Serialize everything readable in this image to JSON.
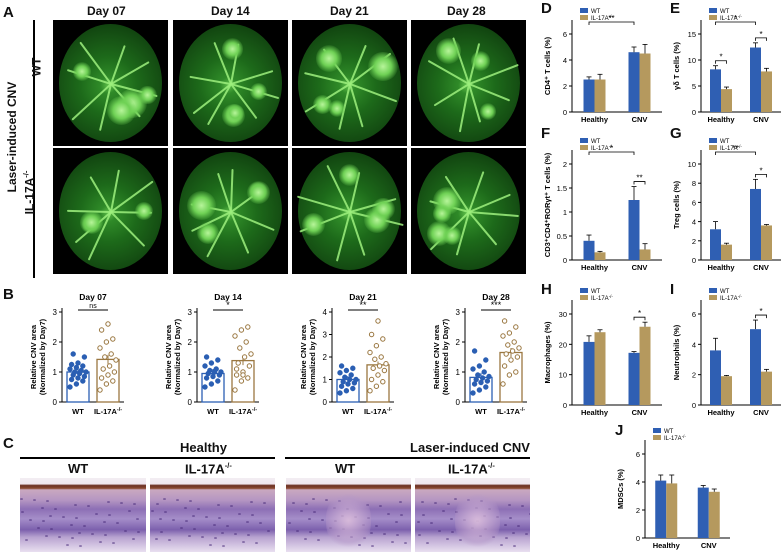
{
  "panels": {
    "A": "A",
    "B": "B",
    "C": "C",
    "D": "D",
    "E": "E",
    "F": "F",
    "G": "G",
    "H": "H",
    "I": "I",
    "J": "J"
  },
  "panel_a": {
    "days": [
      "Day 07",
      "Day 14",
      "Day 21",
      "Day 28"
    ],
    "row_title": "Laser-induced CNV",
    "rows": [
      "WT",
      "IL-17A"
    ],
    "row_sup": "-/-"
  },
  "panel_b": {
    "ylabel_1": "Relative CNV area",
    "ylabel_2": "(Normalized by Day7)",
    "groups": [
      "WT",
      "IL-17A"
    ],
    "group_sup": "-/-",
    "colors": {
      "wt": "#2b5fb3",
      "ko": "#9a7740"
    }
  },
  "panel_c": {
    "headers": [
      "Healthy",
      "Laser-induced CNV"
    ],
    "sub": [
      "WT",
      "IL-17A",
      "WT",
      "IL-17A"
    ],
    "sub_sup": "-/-"
  },
  "legend": {
    "wt": "WT",
    "ko": "IL-17A",
    "ko_sup": "-/-"
  },
  "bar_colors": {
    "wt": "#2f5fb3",
    "ko": "#b5995e"
  },
  "chart_data": [
    {
      "panel": "B",
      "type": "scatter",
      "title": "Day 07",
      "ylim": [
        0,
        3
      ],
      "yticks": [
        0,
        1,
        2,
        3
      ],
      "categories": [
        "WT",
        "IL-17A"
      ],
      "means": [
        1.0,
        1.42
      ],
      "sig": "ns",
      "series": [
        {
          "name": "WT",
          "values": [
            0.5,
            0.6,
            0.7,
            0.75,
            0.8,
            0.85,
            0.9,
            0.95,
            1.0,
            1.0,
            1.05,
            1.1,
            1.15,
            1.2,
            1.25,
            1.3,
            1.5,
            1.6
          ]
        },
        {
          "name": "IL-17A",
          "values": [
            0.4,
            0.6,
            0.7,
            0.8,
            0.9,
            1.0,
            1.1,
            1.2,
            1.4,
            1.5,
            1.6,
            1.8,
            2.0,
            2.1,
            2.4,
            2.6
          ]
        }
      ]
    },
    {
      "panel": "B",
      "type": "scatter",
      "title": "Day 14",
      "ylim": [
        0,
        3
      ],
      "yticks": [
        0,
        1,
        2,
        3
      ],
      "categories": [
        "WT",
        "IL-17A"
      ],
      "means": [
        0.95,
        1.38
      ],
      "sig": "*",
      "series": [
        {
          "name": "WT",
          "values": [
            0.5,
            0.6,
            0.7,
            0.8,
            0.85,
            0.9,
            0.95,
            1.0,
            1.0,
            1.05,
            1.1,
            1.2,
            1.3,
            1.4,
            1.5
          ]
        },
        {
          "name": "IL-17A",
          "values": [
            0.4,
            0.7,
            0.8,
            0.9,
            1.0,
            1.2,
            1.3,
            1.5,
            1.6,
            1.8,
            2.0,
            2.2,
            2.4,
            2.5,
            1.1,
            0.9
          ]
        }
      ]
    },
    {
      "panel": "B",
      "type": "scatter",
      "title": "Day 21",
      "ylim": [
        0,
        4
      ],
      "yticks": [
        0,
        1,
        2,
        3,
        4
      ],
      "categories": [
        "WT",
        "IL-17A"
      ],
      "means": [
        1.0,
        1.65
      ],
      "sig": "**",
      "series": [
        {
          "name": "WT",
          "values": [
            0.4,
            0.5,
            0.6,
            0.7,
            0.8,
            0.85,
            0.9,
            1.0,
            1.0,
            1.1,
            1.2,
            1.3,
            1.4,
            1.5,
            1.6
          ]
        },
        {
          "name": "IL-17A",
          "values": [
            0.5,
            0.7,
            0.9,
            1.0,
            1.2,
            1.4,
            1.5,
            1.6,
            1.7,
            1.9,
            2.0,
            2.2,
            2.5,
            2.8,
            3.0,
            3.6
          ]
        }
      ]
    },
    {
      "panel": "B",
      "type": "scatter",
      "title": "Day 28",
      "ylim": [
        0,
        3
      ],
      "yticks": [
        0,
        1,
        2,
        3
      ],
      "categories": [
        "WT",
        "IL-17A"
      ],
      "means": [
        0.82,
        1.65
      ],
      "sig": "***",
      "series": [
        {
          "name": "WT",
          "values": [
            0.3,
            0.4,
            0.5,
            0.6,
            0.65,
            0.7,
            0.75,
            0.8,
            0.85,
            0.9,
            1.0,
            1.1,
            1.2,
            1.4,
            1.7
          ]
        },
        {
          "name": "IL-17A",
          "values": [
            0.6,
            0.9,
            1.0,
            1.2,
            1.4,
            1.5,
            1.6,
            1.7,
            1.8,
            1.9,
            2.0,
            2.2,
            2.3,
            2.5,
            2.7
          ]
        }
      ]
    },
    {
      "panel": "D",
      "type": "bar",
      "ylabel": "CD4⁺ T cells (%)",
      "ylim": [
        0,
        6
      ],
      "yticks": [
        0,
        2,
        4,
        6
      ],
      "categories": [
        "Healthy",
        "CNV"
      ],
      "series": [
        {
          "name": "WT",
          "values": [
            2.5,
            4.6
          ],
          "err": [
            0.2,
            0.4
          ]
        },
        {
          "name": "IL-17A",
          "values": [
            2.5,
            4.5
          ],
          "err": [
            0.4,
            0.7
          ]
        }
      ],
      "sig": [
        {
          "label": "**",
          "from": [
            0,
            0
          ],
          "to": [
            1,
            0
          ]
        }
      ]
    },
    {
      "panel": "E",
      "type": "bar",
      "ylabel": "γδ T cells (%)",
      "ylim": [
        0,
        15
      ],
      "yticks": [
        0,
        5,
        10,
        15
      ],
      "categories": [
        "Healthy",
        "CNV"
      ],
      "series": [
        {
          "name": "WT",
          "values": [
            8.2,
            12.4
          ],
          "err": [
            0.7,
            0.9
          ]
        },
        {
          "name": "IL-17A",
          "values": [
            4.4,
            7.8
          ],
          "err": [
            0.4,
            0.6
          ]
        }
      ],
      "sig": [
        {
          "label": "*",
          "from": [
            0,
            0
          ],
          "to": [
            0,
            1
          ]
        },
        {
          "label": "*",
          "from": [
            0,
            0
          ],
          "to": [
            1,
            0
          ]
        },
        {
          "label": "*",
          "from": [
            1,
            0
          ],
          "to": [
            1,
            1
          ]
        }
      ]
    },
    {
      "panel": "F",
      "type": "bar",
      "ylabel": "CD3⁺CD4⁺RORγt⁺ T cells (%)",
      "ylim": [
        0,
        2.0
      ],
      "yticks": [
        0,
        0.5,
        1.0,
        1.5,
        2.0
      ],
      "categories": [
        "Healthy",
        "CNV"
      ],
      "series": [
        {
          "name": "WT",
          "values": [
            0.4,
            1.25
          ],
          "err": [
            0.12,
            0.28
          ]
        },
        {
          "name": "IL-17A",
          "values": [
            0.16,
            0.22
          ],
          "err": [
            0.02,
            0.12
          ]
        }
      ],
      "sig": [
        {
          "label": "*",
          "from": [
            0,
            0
          ],
          "to": [
            1,
            0
          ]
        },
        {
          "label": "**",
          "from": [
            1,
            0
          ],
          "to": [
            1,
            1
          ]
        }
      ]
    },
    {
      "panel": "G",
      "type": "bar",
      "ylabel": "Treg cells (%)",
      "ylim": [
        0,
        10
      ],
      "yticks": [
        0,
        2,
        4,
        6,
        8,
        10
      ],
      "categories": [
        "Healthy",
        "CNV"
      ],
      "series": [
        {
          "name": "WT",
          "values": [
            3.2,
            7.4
          ],
          "err": [
            0.8,
            1.0
          ]
        },
        {
          "name": "IL-17A",
          "values": [
            1.6,
            3.6
          ],
          "err": [
            0.15,
            0.1
          ]
        }
      ],
      "sig": [
        {
          "label": "**",
          "from": [
            0,
            0
          ],
          "to": [
            1,
            0
          ]
        },
        {
          "label": "*",
          "from": [
            1,
            0
          ],
          "to": [
            1,
            1
          ]
        }
      ]
    },
    {
      "panel": "H",
      "type": "bar",
      "ylabel": "Macrophages (%)",
      "ylim": [
        0,
        30
      ],
      "yticks": [
        0,
        10,
        20,
        30
      ],
      "categories": [
        "Healthy",
        "CNV"
      ],
      "series": [
        {
          "name": "WT",
          "values": [
            20.8,
            17.2
          ],
          "err": [
            2.0,
            0.4
          ]
        },
        {
          "name": "IL-17A",
          "values": [
            24.0,
            25.8
          ],
          "err": [
            0.8,
            1.5
          ]
        }
      ],
      "sig": [
        {
          "label": "*",
          "from": [
            1,
            0
          ],
          "to": [
            1,
            1
          ]
        }
      ]
    },
    {
      "panel": "I",
      "type": "bar",
      "ylabel": "Neutrophils (%)",
      "ylim": [
        0,
        6
      ],
      "yticks": [
        0,
        2,
        4,
        6
      ],
      "categories": [
        "Healthy",
        "CNV"
      ],
      "series": [
        {
          "name": "WT",
          "values": [
            3.6,
            5.0
          ],
          "err": [
            0.8,
            0.6
          ]
        },
        {
          "name": "IL-17A",
          "values": [
            1.9,
            2.2
          ],
          "err": [
            0.05,
            0.15
          ]
        }
      ],
      "sig": [
        {
          "label": "*",
          "from": [
            1,
            0
          ],
          "to": [
            1,
            1
          ]
        }
      ]
    },
    {
      "panel": "J",
      "type": "bar",
      "ylabel": "MDSCs (%)",
      "ylim": [
        0,
        6
      ],
      "yticks": [
        0,
        2,
        4,
        6
      ],
      "categories": [
        "Healthy",
        "CNV"
      ],
      "series": [
        {
          "name": "WT",
          "values": [
            4.1,
            3.6
          ],
          "err": [
            0.4,
            0.15
          ]
        },
        {
          "name": "IL-17A",
          "values": [
            3.9,
            3.3
          ],
          "err": [
            0.6,
            0.2
          ]
        }
      ],
      "sig": []
    }
  ]
}
